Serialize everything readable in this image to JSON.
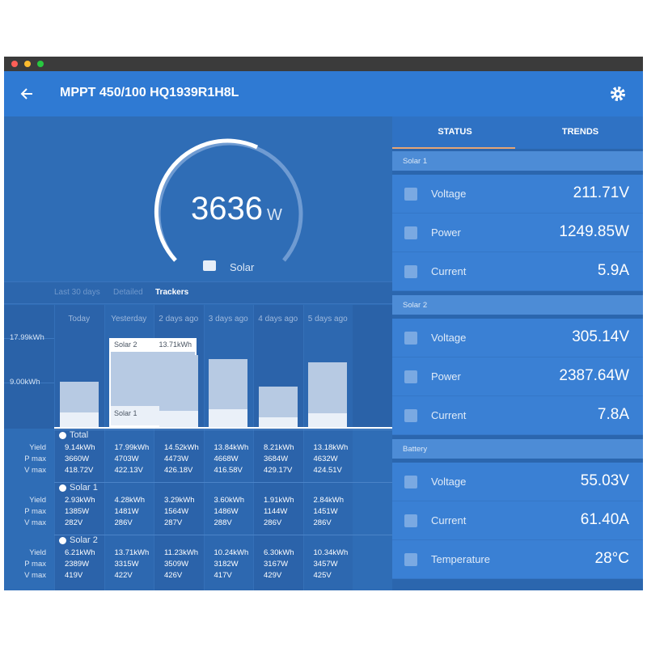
{
  "header": {
    "title": "MPPT 450/100 HQ1939R1H8L"
  },
  "gauge": {
    "value": 3636,
    "unit": "W",
    "label": "Solar"
  },
  "history_tabs": [
    "Last 30 days",
    "Detailed",
    "Trackers"
  ],
  "chart": {
    "categories": [
      "Today",
      "Yesterday",
      "2 days ago",
      "3 days ago",
      "4 days ago",
      "5 days ago"
    ],
    "ylim": [
      0,
      20
    ],
    "yticks": [
      {
        "value": 17.99,
        "label": "17.99kWh"
      },
      {
        "value": 9,
        "label": "9.00kWh"
      }
    ]
  },
  "trackers": {
    "groups": [
      {
        "name": "Total",
        "rows": [
          {
            "label": "Yield",
            "values": [
              "9.14kWh",
              "17.99kWh",
              "14.52kWh",
              "13.84kWh",
              "8.21kWh",
              "13.18kWh"
            ]
          },
          {
            "label": "P max",
            "values": [
              "3660W",
              "4703W",
              "4473W",
              "4668W",
              "3684W",
              "4632W"
            ]
          },
          {
            "label": "V max",
            "values": [
              "418.72V",
              "422.13V",
              "426.18V",
              "416.58V",
              "429.17V",
              "424.51V"
            ]
          }
        ]
      },
      {
        "name": "Solar 1",
        "color": "#eaf0f8",
        "rows": [
          {
            "label": "Yield",
            "values": [
              2.93,
              4.28,
              3.29,
              3.6,
              1.91,
              2.84
            ],
            "value_labels": [
              "2.93kWh",
              "4.28kWh",
              "3.29kWh",
              "3.60kWh",
              "1.91kWh",
              "2.84kWh"
            ]
          },
          {
            "label": "P max",
            "values": [
              "1385W",
              "1481W",
              "1564W",
              "1486W",
              "1144W",
              "1451W"
            ]
          },
          {
            "label": "V max",
            "values": [
              "282V",
              "286V",
              "287V",
              "288V",
              "286V",
              "286V"
            ]
          }
        ]
      },
      {
        "name": "Solar 2",
        "color": "#b7cae3",
        "rows": [
          {
            "label": "Yield",
            "values": [
              6.21,
              13.71,
              11.23,
              10.24,
              6.3,
              10.34
            ],
            "value_labels": [
              "6.21kWh",
              "13.71kWh",
              "11.23kWh",
              "10.24kWh",
              "6.30kWh",
              "10.34kWh"
            ]
          },
          {
            "label": "P max",
            "values": [
              "2389W",
              "3315W",
              "3509W",
              "3182W",
              "3167W",
              "3457W"
            ]
          },
          {
            "label": "V max",
            "values": [
              "419V",
              "422V",
              "426V",
              "417V",
              "429V",
              "425V"
            ]
          }
        ]
      }
    ]
  },
  "status": {
    "tabs": [
      "STATUS",
      "TRENDS"
    ],
    "sections": [
      {
        "name": "Solar 1",
        "rows": [
          {
            "label": "Voltage",
            "value": "211.71V"
          },
          {
            "label": "Power",
            "value": "1249.85W"
          },
          {
            "label": "Current",
            "value": "5.9A"
          }
        ]
      },
      {
        "name": "Solar 2",
        "rows": [
          {
            "label": "Voltage",
            "value": "305.14V"
          },
          {
            "label": "Power",
            "value": "2387.64W"
          },
          {
            "label": "Current",
            "value": "7.8A"
          }
        ]
      },
      {
        "name": "Battery",
        "rows": [
          {
            "label": "Voltage",
            "value": "55.03V"
          },
          {
            "label": "Current",
            "value": "61.40A"
          },
          {
            "label": "Temperature",
            "value": "28°C"
          }
        ]
      }
    ]
  }
}
